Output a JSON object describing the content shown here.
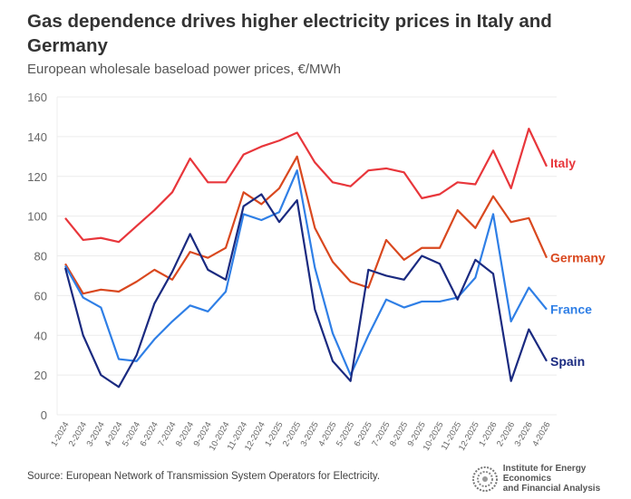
{
  "title": "Gas dependence drives higher electricity prices in Italy and Germany",
  "subtitle": "European wholesale baseload power prices, €/MWh",
  "source": "Source: European Network of Transmission System Operators for Electricity.",
  "logo": {
    "line1": "Institute for Energy Economics",
    "line2": "and Financial Analysis"
  },
  "chart_data": {
    "type": "line",
    "title": "Gas dependence drives higher electricity prices in Italy and Germany",
    "subtitle": "European wholesale baseload power prices, €/MWh",
    "ylim": [
      0,
      160
    ],
    "yticks": [
      0,
      20,
      40,
      60,
      80,
      100,
      120,
      140,
      160
    ],
    "grid": true,
    "legend": "inline-right",
    "categories": [
      "1-2024",
      "2-2024",
      "3-2024",
      "4-2024",
      "5-2024",
      "6-2024",
      "7-2024",
      "8-2024",
      "9-2024",
      "10-2024",
      "11-2024",
      "12-2024",
      "1-2025",
      "2-2025",
      "3-2025",
      "4-2025",
      "5-2025",
      "6-2025",
      "7-2025",
      "8-2025",
      "9-2025",
      "10-2025",
      "11-2025",
      "12-2025",
      "1-2026",
      "2-2026",
      "3-2026",
      "4-2026"
    ],
    "series": [
      {
        "name": "Italy",
        "color": "#e8363b",
        "values": [
          99,
          88,
          89,
          87,
          95,
          103,
          112,
          129,
          117,
          117,
          131,
          135,
          138,
          142,
          127,
          117,
          115,
          123,
          124,
          122,
          109,
          111,
          117,
          116,
          133,
          114,
          144,
          125
        ]
      },
      {
        "name": "Germany",
        "color": "#d9481f",
        "values": [
          76,
          61,
          63,
          62,
          67,
          73,
          68,
          82,
          79,
          84,
          112,
          106,
          114,
          130,
          94,
          77,
          67,
          64,
          88,
          78,
          84,
          84,
          103,
          94,
          110,
          97,
          99,
          79
        ]
      },
      {
        "name": "France",
        "color": "#2f7fe6",
        "values": [
          75,
          59,
          54,
          28,
          27,
          38,
          47,
          55,
          52,
          62,
          101,
          98,
          102,
          123,
          74,
          41,
          20,
          40,
          58,
          54,
          57,
          57,
          59,
          69,
          101,
          47,
          64,
          53
        ]
      },
      {
        "name": "Spain",
        "color": "#1a2a80",
        "values": [
          74,
          40,
          20,
          14,
          30,
          56,
          72,
          91,
          73,
          68,
          105,
          111,
          97,
          108,
          53,
          27,
          17,
          73,
          70,
          68,
          80,
          76,
          58,
          78,
          71,
          17,
          43,
          27
        ]
      }
    ]
  }
}
